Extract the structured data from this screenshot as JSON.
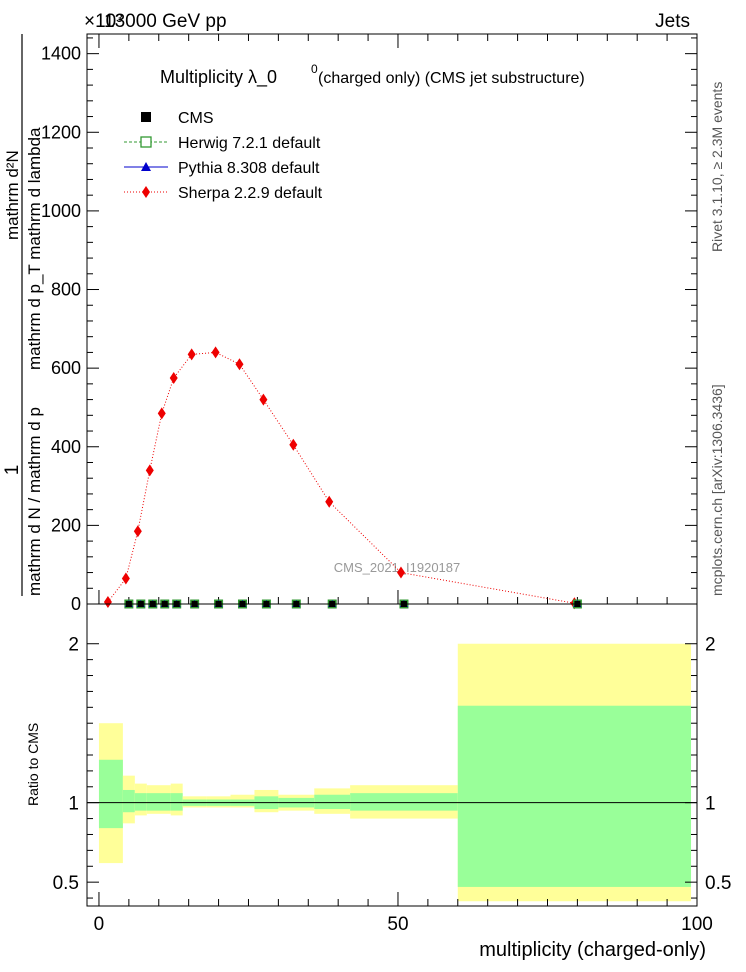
{
  "header": {
    "top_left": "13000 GeV pp",
    "exponent_label": "×10³",
    "top_right": "Jets"
  },
  "side_labels": {
    "rivet": "Rivet 3.1.10, ≥ 2.3M events",
    "mcplots": "mcplots.cern.ch [arXiv:1306.3436]"
  },
  "watermark": "CMS_2021_I1920187",
  "chart_data": [
    {
      "type": "line",
      "title_main": "Multiplicity  λ_0",
      "title_sup": "0",
      "title_rest": " (charged only) (CMS jet substructure)",
      "ylabel_numerator_left": "1",
      "ylabel_denominator": "mathrm d N / mathrm d p",
      "ylabel_sub": "T",
      "ylabel_right_top": "mathrm d²N",
      "ylabel_right_bottom": "mathrm d p_T mathrm d lambda",
      "xlim": [
        -2,
        100
      ],
      "ylim": [
        0,
        1450
      ],
      "y_ticks": [
        0,
        200,
        400,
        600,
        800,
        1000,
        1200,
        1400
      ],
      "y_tick_labels": [
        "0",
        "200",
        "400",
        "600",
        "800",
        "1000",
        "1200",
        "1400"
      ],
      "legend_position": "top-left",
      "legend": [
        {
          "label": "CMS",
          "marker": "square-filled",
          "color": "#000000"
        },
        {
          "label": "Herwig 7.2.1 default",
          "marker": "square-open",
          "color": "#339933"
        },
        {
          "label": "Pythia 8.308 default",
          "marker": "triangle",
          "color": "#0000cc"
        },
        {
          "label": "Sherpa 2.2.9 default",
          "marker": "diamond",
          "color": "#ee0000"
        }
      ],
      "cms_x": [
        5,
        7,
        9,
        11,
        13,
        16,
        20,
        24,
        28,
        33,
        39,
        51,
        80
      ],
      "cms_y": [
        0,
        0,
        0,
        0,
        0,
        0,
        0,
        0,
        0,
        0,
        0,
        0,
        0
      ],
      "sherpa_x": [
        1.5,
        4.5,
        6.5,
        8.5,
        10.5,
        12.5,
        15.5,
        19.5,
        23.5,
        27.5,
        32.5,
        38.5,
        50.5,
        79.5
      ],
      "sherpa_y": [
        5,
        65,
        185,
        340,
        485,
        575,
        635,
        640,
        610,
        520,
        405,
        260,
        80,
        2
      ]
    },
    {
      "type": "area",
      "ylabel": "Ratio to CMS",
      "xlabel": "multiplicity (charged-only)",
      "xlim": [
        -2,
        100
      ],
      "ylim": [
        0.35,
        2.25
      ],
      "x_ticks": [
        0,
        50,
        100
      ],
      "x_tick_labels": [
        "0",
        "50",
        "100"
      ],
      "y_ticks": [
        0.5,
        1,
        2
      ],
      "y_tick_labels": [
        "0.5",
        "1",
        "2"
      ],
      "bins": [
        {
          "lo": 0,
          "hi": 4,
          "yellow": [
            0.62,
            1.5
          ],
          "green": [
            0.84,
            1.27
          ]
        },
        {
          "lo": 4,
          "hi": 6,
          "yellow": [
            0.87,
            1.17
          ],
          "green": [
            0.94,
            1.08
          ]
        },
        {
          "lo": 6,
          "hi": 8,
          "yellow": [
            0.92,
            1.12
          ],
          "green": [
            0.95,
            1.06
          ]
        },
        {
          "lo": 8,
          "hi": 12,
          "yellow": [
            0.93,
            1.11
          ],
          "green": [
            0.95,
            1.06
          ]
        },
        {
          "lo": 12,
          "hi": 14,
          "yellow": [
            0.92,
            1.12
          ],
          "green": [
            0.95,
            1.06
          ]
        },
        {
          "lo": 14,
          "hi": 18,
          "yellow": [
            0.97,
            1.04
          ],
          "green": [
            0.98,
            1.02
          ]
        },
        {
          "lo": 18,
          "hi": 22,
          "yellow": [
            0.97,
            1.04
          ],
          "green": [
            0.98,
            1.02
          ]
        },
        {
          "lo": 22,
          "hi": 26,
          "yellow": [
            0.97,
            1.05
          ],
          "green": [
            0.98,
            1.02
          ]
        },
        {
          "lo": 26,
          "hi": 30,
          "yellow": [
            0.94,
            1.08
          ],
          "green": [
            0.96,
            1.04
          ]
        },
        {
          "lo": 30,
          "hi": 36,
          "yellow": [
            0.95,
            1.05
          ],
          "green": [
            0.97,
            1.03
          ]
        },
        {
          "lo": 36,
          "hi": 42,
          "yellow": [
            0.93,
            1.09
          ],
          "green": [
            0.96,
            1.05
          ]
        },
        {
          "lo": 42,
          "hi": 60,
          "yellow": [
            0.9,
            1.11
          ],
          "green": [
            0.95,
            1.06
          ]
        },
        {
          "lo": 60,
          "hi": 99,
          "yellow": [
            0.38,
            2.0
          ],
          "green": [
            0.47,
            1.61
          ]
        }
      ]
    }
  ]
}
